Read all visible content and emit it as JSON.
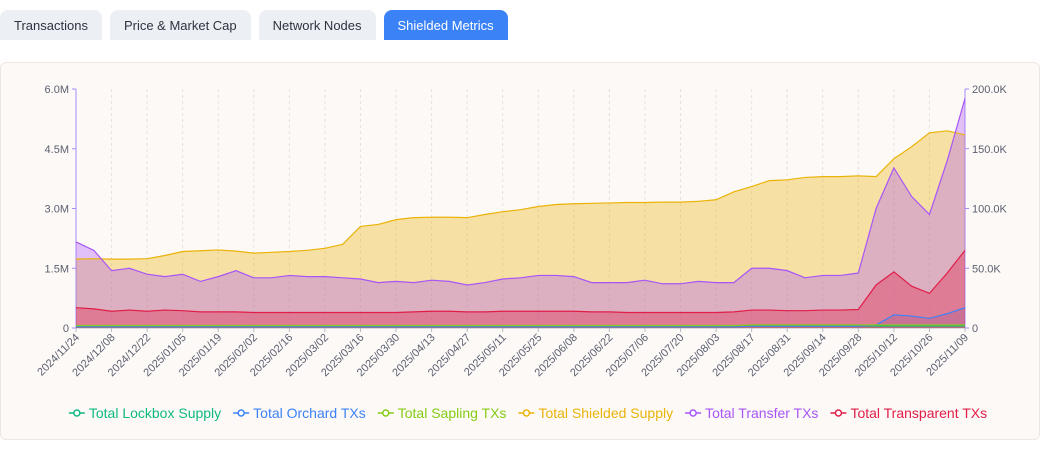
{
  "tabs": [
    {
      "label": "Transactions",
      "active": false
    },
    {
      "label": "Price & Market Cap",
      "active": false
    },
    {
      "label": "Network Nodes",
      "active": false
    },
    {
      "label": "Shielded Metrics",
      "active": true
    }
  ],
  "chart_data": {
    "type": "area",
    "categories": [
      "2024/11/24",
      null,
      "2024/12/08",
      null,
      "2024/12/22",
      null,
      "2025/01/05",
      null,
      "2025/01/19",
      null,
      "2025/02/02",
      null,
      "2025/02/16",
      null,
      "2025/03/02",
      null,
      "2025/03/16",
      null,
      "2025/03/30",
      null,
      "2025/04/13",
      null,
      "2025/04/27",
      null,
      "2025/05/11",
      null,
      "2025/05/25",
      null,
      "2025/06/08",
      null,
      "2025/06/22",
      null,
      "2025/07/06",
      null,
      "2025/07/20",
      null,
      "2025/08/03",
      null,
      "2025/08/17",
      null,
      "2025/08/31",
      null,
      "2025/09/14",
      null,
      "2025/09/28",
      null,
      "2025/10/12",
      null,
      "2025/10/26",
      null,
      "2025/11/09"
    ],
    "ylim": [
      0,
      6000000
    ],
    "yticks": [
      0,
      {
        "value": 1500000,
        "label": "1.5M"
      },
      {
        "value": 3000000,
        "label": "3.0M"
      },
      {
        "value": 4500000,
        "label": "4.5M"
      },
      {
        "value": 6000000,
        "label": "6.0M"
      }
    ],
    "y2lim": [
      0,
      200000
    ],
    "y2ticks": [
      0,
      {
        "value": 50000,
        "label": "50.0K"
      },
      {
        "value": 100000,
        "label": "100.0K"
      },
      {
        "value": 150000,
        "label": "150.0K"
      },
      {
        "value": 200000,
        "label": "200.0K"
      }
    ],
    "grid": true,
    "legend": "bottom",
    "series": [
      {
        "name": "Total Lockbox Supply",
        "color": "#10b981",
        "values": [
          50000,
          50000,
          50000,
          50000,
          50000,
          50000,
          50000,
          50000,
          50000,
          50000,
          50000,
          50000,
          50000,
          50000,
          50000,
          50000,
          50000,
          50000,
          50000,
          50000,
          50000,
          50000,
          50000,
          50000,
          50000,
          50000,
          50000,
          50000,
          50000,
          50000,
          50000,
          50000,
          50000,
          50000,
          50000,
          50000,
          50000,
          50000,
          50000,
          50000,
          50000,
          50000,
          50000,
          50000,
          50000,
          50000,
          50000,
          50000,
          50000,
          50000,
          50000
        ]
      },
      {
        "name": "Total Orchard TXs",
        "color": "#3b82f6",
        "axis": "y2",
        "values": [
          1000,
          1000,
          1000,
          1000,
          1000,
          1000,
          1000,
          1000,
          1000,
          1000,
          1000,
          1000,
          1000,
          1000,
          1000,
          1000,
          1000,
          1000,
          1000,
          1000,
          1000,
          1000,
          1000,
          1000,
          1000,
          1000,
          1000,
          1000,
          1000,
          1000,
          1000,
          1000,
          1000,
          1000,
          1000,
          1000,
          1000,
          1000,
          1500,
          1500,
          1500,
          1500,
          1500,
          1500,
          1500,
          2500,
          11000,
          10000,
          8000,
          12000,
          17000
        ]
      },
      {
        "name": "Total Sapling TXs",
        "color": "#84cc16",
        "axis": "y2",
        "values": [
          2000,
          2000,
          2000,
          2000,
          2000,
          2000,
          2000,
          2000,
          2000,
          2000,
          2000,
          2000,
          2000,
          2000,
          2000,
          2000,
          2000,
          2000,
          2000,
          2000,
          2000,
          2000,
          2000,
          2000,
          2000,
          2000,
          2000,
          2000,
          2000,
          2000,
          2000,
          2000,
          2000,
          2000,
          2000,
          2000,
          2000,
          2000,
          2500,
          2500,
          2500,
          2500,
          2500,
          2500,
          2500,
          2500,
          2500,
          2500,
          2500,
          2500,
          2500
        ]
      },
      {
        "name": "Total Shielded Supply",
        "color": "#eab308",
        "values": [
          1730000,
          1740000,
          1730000,
          1730000,
          1740000,
          1820000,
          1920000,
          1940000,
          1960000,
          1930000,
          1880000,
          1900000,
          1920000,
          1950000,
          2000000,
          2100000,
          2550000,
          2600000,
          2720000,
          2770000,
          2780000,
          2780000,
          2770000,
          2850000,
          2920000,
          2970000,
          3050000,
          3100000,
          3120000,
          3130000,
          3140000,
          3150000,
          3150000,
          3160000,
          3160000,
          3180000,
          3220000,
          3420000,
          3550000,
          3700000,
          3720000,
          3780000,
          3800000,
          3800000,
          3820000,
          3800000,
          4250000,
          4550000,
          4900000,
          4950000,
          4850000
        ]
      },
      {
        "name": "Total Transfer TXs",
        "color": "#a855f7",
        "axis": "y2",
        "values": [
          72000,
          65000,
          48000,
          50000,
          45000,
          43000,
          45000,
          39000,
          43000,
          48000,
          42000,
          42000,
          44000,
          43000,
          43000,
          42000,
          41000,
          38000,
          39000,
          38000,
          40000,
          39000,
          36000,
          38000,
          41000,
          42000,
          44000,
          44000,
          43000,
          38000,
          38000,
          38000,
          40000,
          37000,
          37000,
          39000,
          38000,
          38000,
          50000,
          50000,
          48000,
          42000,
          44000,
          44000,
          46000,
          100000,
          134000,
          110000,
          95000,
          140000,
          192000
        ]
      },
      {
        "name": "Total Transparent TXs",
        "color": "#e11d48",
        "axis": "y2",
        "values": [
          17000,
          16000,
          14000,
          15000,
          14000,
          15000,
          14500,
          13500,
          13500,
          13500,
          13000,
          13000,
          13000,
          13000,
          13000,
          13000,
          13000,
          13000,
          13000,
          13500,
          14000,
          14000,
          13500,
          13500,
          14000,
          14000,
          14000,
          14000,
          14000,
          13500,
          13500,
          13000,
          13000,
          13000,
          13000,
          13000,
          13000,
          13500,
          15000,
          15000,
          14500,
          14500,
          15000,
          15000,
          15500,
          36000,
          47000,
          35000,
          29000,
          46000,
          65000
        ]
      }
    ]
  }
}
